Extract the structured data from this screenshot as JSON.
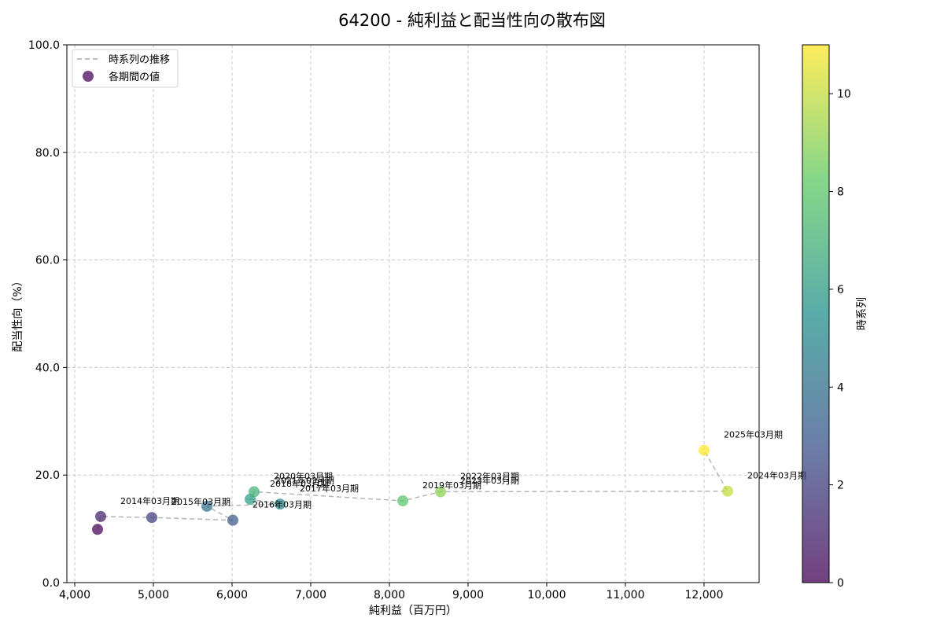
{
  "chart_data": {
    "type": "scatter",
    "title": "64200 - 純利益と配当性向の散布図",
    "xlabel": "純利益（百万円）",
    "ylabel": "配当性向（%）",
    "xlim": [
      3900,
      12700
    ],
    "ylim": [
      0,
      100
    ],
    "x_ticks": [
      4000,
      5000,
      6000,
      7000,
      8000,
      9000,
      10000,
      11000,
      12000
    ],
    "x_tick_labels": [
      "4,000",
      "5,000",
      "6,000",
      "7,000",
      "8,000",
      "9,000",
      "10,000",
      "11,000",
      "12,000"
    ],
    "y_ticks": [
      0,
      20,
      40,
      60,
      80,
      100
    ],
    "y_tick_labels": [
      "0.0",
      "20.0",
      "40.0",
      "60.0",
      "80.0",
      "100.0"
    ],
    "grid": true,
    "legend_placement": "top-left",
    "legend": [
      {
        "label": "時系列の推移",
        "kind": "dashed-line",
        "color": "#aaaaaa"
      },
      {
        "label": "各期間の値",
        "kind": "marker",
        "color": "#440154"
      }
    ],
    "colorbar": {
      "label": "時系列",
      "range": [
        0,
        11
      ],
      "ticks": [
        0,
        2,
        4,
        6,
        8,
        10
      ],
      "tick_labels": [
        "0",
        "2",
        "4",
        "6",
        "8",
        "10"
      ],
      "colormap": "viridis"
    },
    "points": [
      {
        "x": 4290,
        "y": 9.9,
        "t": 0,
        "label": ""
      },
      {
        "x": 4330,
        "y": 12.3,
        "t": 1,
        "label": "2014年03月期"
      },
      {
        "x": 4980,
        "y": 12.1,
        "t": 2,
        "label": "2015年03月期"
      },
      {
        "x": 6010,
        "y": 11.6,
        "t": 3,
        "label": "2016年03月期"
      },
      {
        "x": 5680,
        "y": 14.2,
        "t": 4,
        "label": ""
      },
      {
        "x": 6610,
        "y": 14.6,
        "t": 5,
        "label": "2017年03月期"
      },
      {
        "x": 6230,
        "y": 15.5,
        "t": 6,
        "label": "2018年03月期"
      },
      {
        "x": 6280,
        "y": 16.9,
        "t": 7,
        "label": "2020年03月期"
      },
      {
        "x": 8170,
        "y": 15.2,
        "t": 8,
        "label": "2019年03月期"
      },
      {
        "x": 8650,
        "y": 16.9,
        "t": 9,
        "label": "2022年03月期"
      },
      {
        "x": 12300,
        "y": 17.0,
        "t": 10,
        "label": "2024年03月期"
      },
      {
        "x": 12000,
        "y": 24.6,
        "t": 11,
        "label": "2025年03月期"
      }
    ],
    "extra_labels": [
      {
        "text": "2021年03月期",
        "x": 6550,
        "y": 19.0
      },
      {
        "text": "2023年03月期",
        "x": 8900,
        "y": 19.0
      }
    ]
  }
}
